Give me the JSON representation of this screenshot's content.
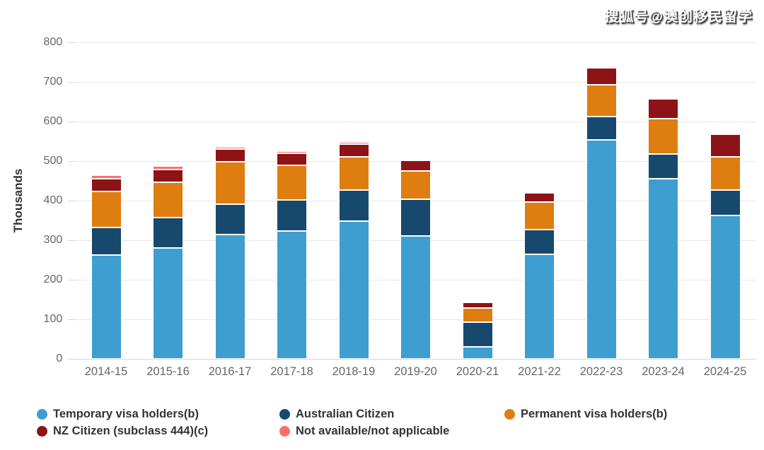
{
  "watermark": "搜狐号@澳创移民留学",
  "chart_data": {
    "type": "bar",
    "stacked": true,
    "title": "",
    "xlabel": "",
    "ylabel": "Thousands",
    "ylim": [
      0,
      800
    ],
    "yticks": [
      0,
      100,
      200,
      300,
      400,
      500,
      600,
      700,
      800
    ],
    "grid": true,
    "legend_position": "bottom-left",
    "categories": [
      "2014-15",
      "2015-16",
      "2016-17",
      "2017-18",
      "2018-19",
      "2019-20",
      "2020-21",
      "2021-22",
      "2022-23",
      "2023-24",
      "2024-25"
    ],
    "series": [
      {
        "name": "Temporary visa holders(b)",
        "color": "#3E9ED0",
        "values": [
          262,
          281,
          314,
          323,
          348,
          311,
          30,
          264,
          554,
          456,
          362
        ]
      },
      {
        "name": "Australian Citizen",
        "color": "#17496E",
        "values": [
          70,
          76,
          77,
          78,
          79,
          93,
          63,
          63,
          59,
          62,
          65
        ]
      },
      {
        "name": "Permanent visa holders(b)",
        "color": "#DE7E10",
        "values": [
          92,
          90,
          107,
          88,
          84,
          71,
          35,
          70,
          80,
          90,
          84
        ]
      },
      {
        "name": "NZ Citizen (subclass 444)(c)",
        "color": "#8E1317",
        "values": [
          31,
          32,
          32,
          31,
          32,
          27,
          15,
          23,
          42,
          49,
          56
        ]
      },
      {
        "name": "Not available/not applicable",
        "color": "#FA6E6F",
        "values": [
          9,
          8,
          6,
          5,
          5,
          4,
          0,
          0,
          0,
          0,
          0
        ]
      }
    ]
  },
  "colors": {
    "background": "#FFFFFF",
    "gridline": "#E6E6E6",
    "axis_line": "#CCD6EB",
    "tick_label": "#666666",
    "axis_title": "#333333",
    "legend_text": "#333333"
  }
}
